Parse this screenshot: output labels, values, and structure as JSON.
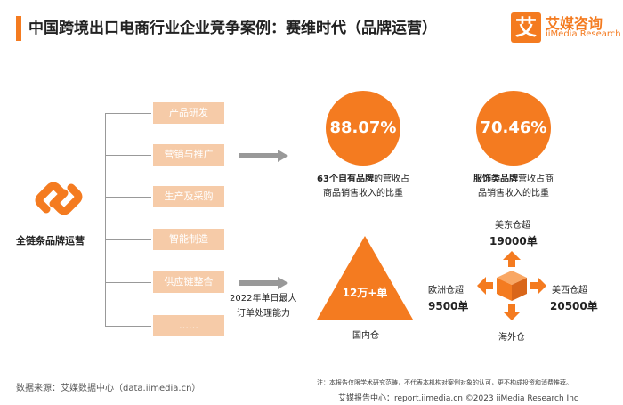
{
  "header": {
    "title": "中国跨境出口电商行业企业竞争案例：赛维时代（品牌运营）",
    "logo_glyph": "艾",
    "logo_name": "艾媒咨询",
    "logo_sub": "iiMedia Research",
    "accent_color": "#f47b20"
  },
  "left": {
    "icon": "chain-link-icon",
    "label": "全链条品牌运营",
    "items": [
      "产品研发",
      "营销与推广",
      "生产及采购",
      "智能制造",
      "供应链整合",
      "……"
    ]
  },
  "stats": [
    {
      "value": "88.07%",
      "desc_bold": "63个自有品牌",
      "desc_rest": "的营收占",
      "desc_line2": "商品销售收入的比重"
    },
    {
      "value": "70.46%",
      "desc_bold": "服饰类品牌",
      "desc_rest": "营收占商",
      "desc_line2": "品销售收入的比重"
    }
  ],
  "order": {
    "line1": "2022年单日最大",
    "line2": "订单处理能力",
    "value": "12万+单",
    "domestic_label": "国内仓"
  },
  "warehouses": {
    "east": {
      "name": "美东仓超",
      "value": "19000单"
    },
    "europe": {
      "name": "欧洲仓超",
      "value": "9500单"
    },
    "west": {
      "name": "美西仓超",
      "value": "20500单"
    },
    "overseas_label": "海外仓"
  },
  "footer": {
    "source": "数据来源：艾媒数据中心（data.iimedia.cn）",
    "note": "注：本报告仅限学术研究范畴，不代表本机构对案例对象的认可，更不构成投资和消费推荐。",
    "copyright": "艾媒报告中心：report.iimedia.cn  ©2023  iiMedia Research  Inc"
  }
}
